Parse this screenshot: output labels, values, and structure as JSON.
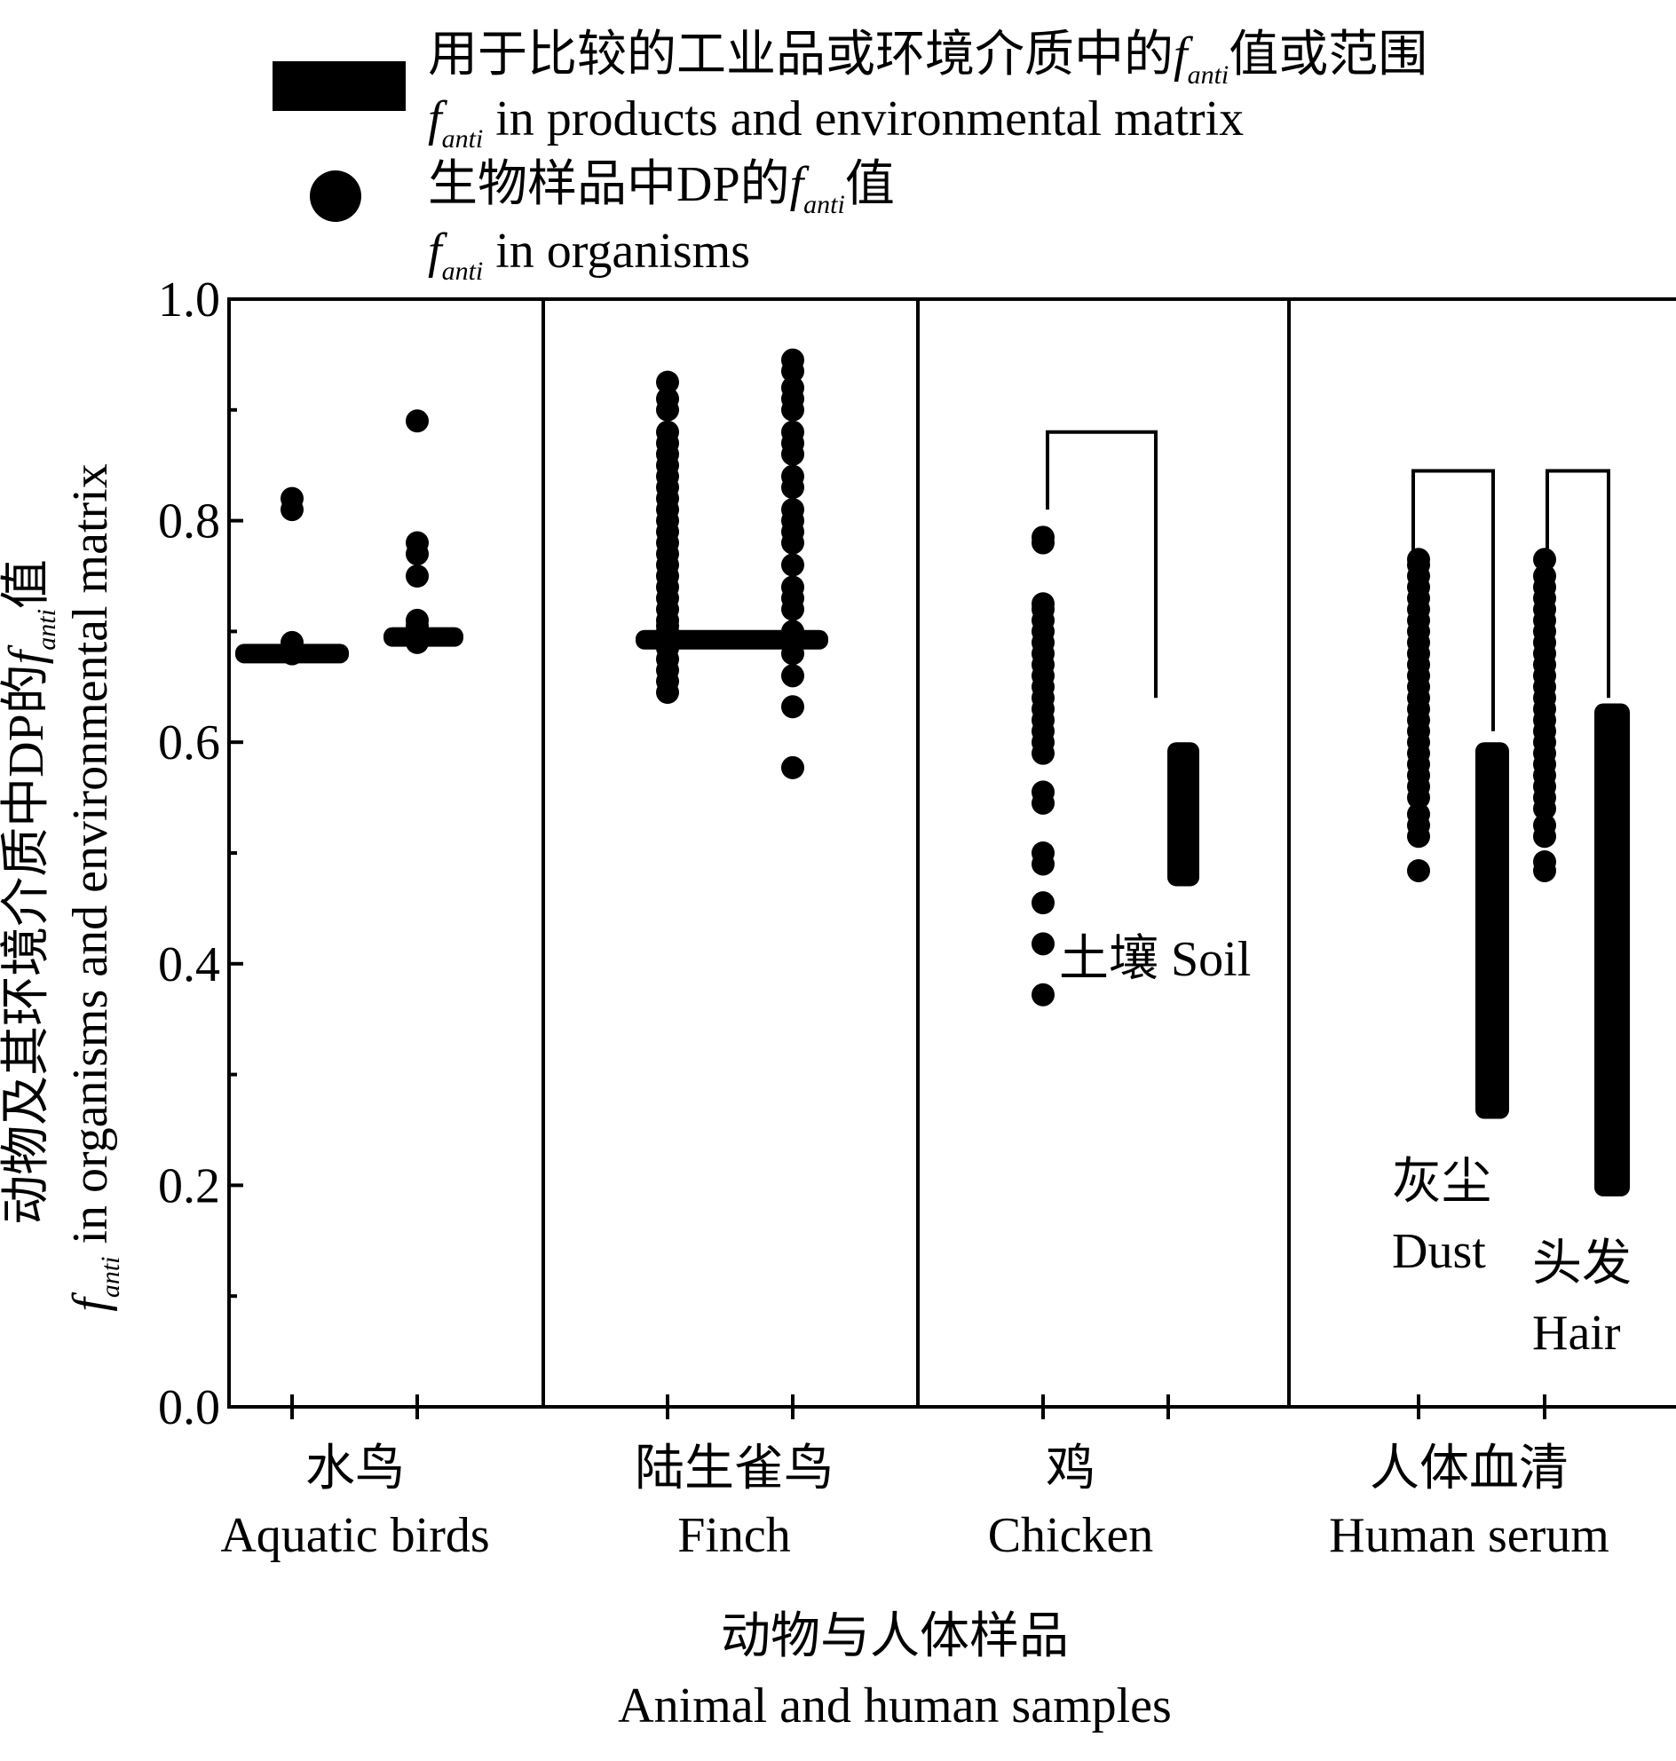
{
  "chart_data": {
    "type": "scatter",
    "legend": {
      "placement": "top",
      "items": [
        {
          "marker": "bar",
          "zh_prefix": "用于比较的工业品或环境介质中的",
          "zh_suffix": "值或范围",
          "en_suffix": " in products and environmental matrix"
        },
        {
          "marker": "dot",
          "zh_prefix": "生物样品中DP的",
          "zh_suffix": "值",
          "en_suffix": " in organisms"
        }
      ]
    },
    "symbol": {
      "f": "f",
      "sub": "anti"
    },
    "ylabel": {
      "zh_prefix": "动物及其环境介质中DP的",
      "zh_suffix": "值",
      "en_suffix": " in organisms and environmental matrix"
    },
    "xlabel": {
      "zh": "动物与人体样品",
      "en": "Animal and human samples"
    },
    "ylim": [
      0.0,
      1.0
    ],
    "yticks": [
      "0.0",
      "0.2",
      "0.4",
      "0.6",
      "0.8",
      "1.0"
    ],
    "grid": false,
    "panels": [
      {
        "id": "aquatic",
        "zh": "水鸟",
        "en": "Aquatic birds"
      },
      {
        "id": "finch",
        "zh": "陆生雀鸟",
        "en": "Finch"
      },
      {
        "id": "chicken",
        "zh": "鸡",
        "en": "Chicken"
      },
      {
        "id": "human",
        "zh": "人体血清",
        "en": "Human serum"
      }
    ],
    "ref_labels": {
      "soil": "土壤 Soil",
      "dust_zh": "灰尘",
      "dust_en": "Dust",
      "hair_zh": "头发",
      "hair_en": "Hair"
    },
    "dot_series": [
      {
        "panel": 0,
        "values": [
          0.68,
          0.68,
          0.68,
          0.68,
          0.68,
          0.68,
          0.68,
          0.69,
          0.81,
          0.82
        ]
      },
      {
        "panel": 0,
        "values": [
          0.69,
          0.695,
          0.7,
          0.705,
          0.71,
          0.75,
          0.77,
          0.78,
          0.89
        ]
      },
      {
        "panel": 1,
        "values": [
          0.645,
          0.655,
          0.665,
          0.675,
          0.685,
          0.69,
          0.695,
          0.7,
          0.705,
          0.71,
          0.72,
          0.73,
          0.74,
          0.75,
          0.76,
          0.77,
          0.78,
          0.79,
          0.8,
          0.81,
          0.82,
          0.83,
          0.84,
          0.85,
          0.86,
          0.87,
          0.88,
          0.9,
          0.91,
          0.925
        ]
      },
      {
        "panel": 1,
        "values": [
          0.577,
          0.632,
          0.66,
          0.68,
          0.69,
          0.695,
          0.7,
          0.72,
          0.73,
          0.74,
          0.76,
          0.78,
          0.79,
          0.8,
          0.81,
          0.83,
          0.84,
          0.86,
          0.87,
          0.88,
          0.9,
          0.91,
          0.92,
          0.935,
          0.945
        ]
      },
      {
        "panel": 2,
        "values": [
          0.372,
          0.418,
          0.455,
          0.49,
          0.5,
          0.545,
          0.555,
          0.59,
          0.6,
          0.61,
          0.62,
          0.63,
          0.64,
          0.65,
          0.66,
          0.67,
          0.68,
          0.69,
          0.7,
          0.71,
          0.72,
          0.725,
          0.78,
          0.785
        ]
      },
      {
        "panel": 3,
        "values": [
          0.484,
          0.515,
          0.525,
          0.535,
          0.55,
          0.56,
          0.57,
          0.58,
          0.59,
          0.6,
          0.61,
          0.62,
          0.63,
          0.64,
          0.65,
          0.66,
          0.67,
          0.68,
          0.69,
          0.7,
          0.71,
          0.72,
          0.73,
          0.74,
          0.75,
          0.76,
          0.765
        ]
      },
      {
        "panel": 3,
        "values": [
          0.484,
          0.492,
          0.515,
          0.525,
          0.54,
          0.55,
          0.56,
          0.57,
          0.58,
          0.59,
          0.6,
          0.61,
          0.62,
          0.63,
          0.64,
          0.65,
          0.66,
          0.67,
          0.68,
          0.69,
          0.7,
          0.71,
          0.72,
          0.73,
          0.74,
          0.75,
          0.765
        ]
      }
    ],
    "ref_ranges": [
      {
        "panel": 0,
        "low": 0.675,
        "high": 0.685
      },
      {
        "panel": 0,
        "low": 0.69,
        "high": 0.7
      },
      {
        "panel": 1,
        "low": 0.685,
        "high": 0.7
      },
      {
        "panel": 2,
        "low": 0.47,
        "high": 0.6
      },
      {
        "panel": 3,
        "low": 0.26,
        "high": 0.6
      },
      {
        "panel": 3,
        "low": 0.19,
        "high": 0.635
      }
    ],
    "brackets": [
      {
        "panel": 2,
        "level": 0.88,
        "left_drop": 0.81,
        "right_drop": 0.64
      },
      {
        "panel": 3,
        "level": 0.845,
        "left_drop": 0.77,
        "right_drop": 0.61
      },
      {
        "panel": 3,
        "level": 0.845,
        "left_drop": 0.77,
        "right_drop": 0.64
      }
    ]
  }
}
